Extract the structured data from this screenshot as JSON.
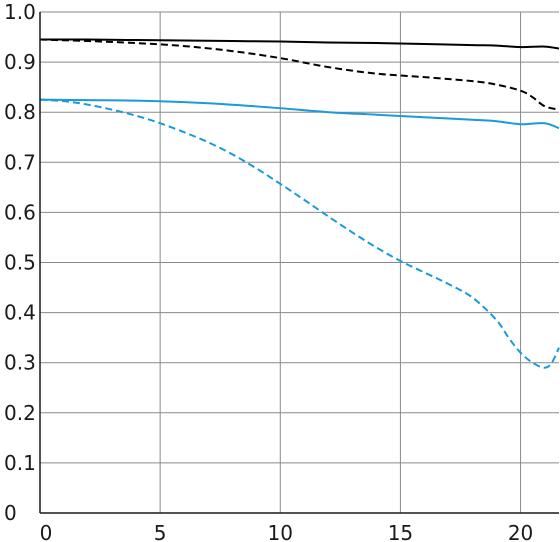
{
  "chart_data": {
    "type": "line",
    "title": "",
    "xlabel": "",
    "ylabel": "",
    "xlim": [
      0,
      21.6
    ],
    "ylim": [
      0,
      1.0
    ],
    "grid": true,
    "x_ticks": [
      0,
      5,
      10,
      15,
      20
    ],
    "x_tick_labels": [
      "0",
      "5",
      "10",
      "15",
      "20"
    ],
    "y_ticks": [
      0,
      0.1,
      0.2,
      0.3,
      0.4,
      0.5,
      0.6,
      0.7,
      0.8,
      0.9,
      1.0
    ],
    "y_tick_labels": [
      "0",
      "0.1",
      "0.2",
      "0.3",
      "0.4",
      "0.5",
      "0.6",
      "0.7",
      "0.8",
      "0.9",
      "1.0"
    ],
    "series": [
      {
        "color": "#000000",
        "dash": "solid",
        "points": [
          [
            0,
            0.945
          ],
          [
            2,
            0.945
          ],
          [
            4,
            0.944
          ],
          [
            6,
            0.943
          ],
          [
            8,
            0.942
          ],
          [
            10,
            0.941
          ],
          [
            12,
            0.939
          ],
          [
            14,
            0.938
          ],
          [
            16,
            0.936
          ],
          [
            18,
            0.934
          ],
          [
            19,
            0.933
          ],
          [
            20,
            0.93
          ],
          [
            21,
            0.931
          ],
          [
            21.6,
            0.927
          ]
        ]
      },
      {
        "color": "#000000",
        "dash": "dashed",
        "points": [
          [
            0,
            0.945
          ],
          [
            2,
            0.942
          ],
          [
            4,
            0.938
          ],
          [
            6,
            0.932
          ],
          [
            8,
            0.922
          ],
          [
            10,
            0.908
          ],
          [
            12,
            0.89
          ],
          [
            14,
            0.877
          ],
          [
            16,
            0.87
          ],
          [
            18,
            0.862
          ],
          [
            19,
            0.855
          ],
          [
            20,
            0.843
          ],
          [
            20.5,
            0.83
          ],
          [
            21,
            0.812
          ],
          [
            21.6,
            0.805
          ]
        ]
      },
      {
        "color": "#1a9ad9",
        "dash": "solid",
        "points": [
          [
            0,
            0.825
          ],
          [
            2,
            0.824
          ],
          [
            4,
            0.823
          ],
          [
            6,
            0.82
          ],
          [
            8,
            0.815
          ],
          [
            10,
            0.808
          ],
          [
            12,
            0.8
          ],
          [
            14,
            0.795
          ],
          [
            16,
            0.79
          ],
          [
            18,
            0.785
          ],
          [
            19,
            0.782
          ],
          [
            20,
            0.776
          ],
          [
            21,
            0.778
          ],
          [
            21.6,
            0.768
          ]
        ]
      },
      {
        "color": "#1a9ad9",
        "dash": "dashed",
        "points": [
          [
            0,
            0.825
          ],
          [
            1,
            0.822
          ],
          [
            2,
            0.815
          ],
          [
            3,
            0.805
          ],
          [
            4,
            0.793
          ],
          [
            5,
            0.778
          ],
          [
            6,
            0.76
          ],
          [
            7,
            0.74
          ],
          [
            8,
            0.716
          ],
          [
            9,
            0.688
          ],
          [
            10,
            0.657
          ],
          [
            11,
            0.625
          ],
          [
            12,
            0.592
          ],
          [
            13,
            0.56
          ],
          [
            14,
            0.53
          ],
          [
            15,
            0.503
          ],
          [
            16,
            0.48
          ],
          [
            17,
            0.457
          ],
          [
            18,
            0.43
          ],
          [
            19,
            0.385
          ],
          [
            19.5,
            0.35
          ],
          [
            20,
            0.32
          ],
          [
            20.5,
            0.3
          ],
          [
            21,
            0.29
          ],
          [
            21.3,
            0.3
          ],
          [
            21.6,
            0.33
          ]
        ]
      }
    ]
  }
}
